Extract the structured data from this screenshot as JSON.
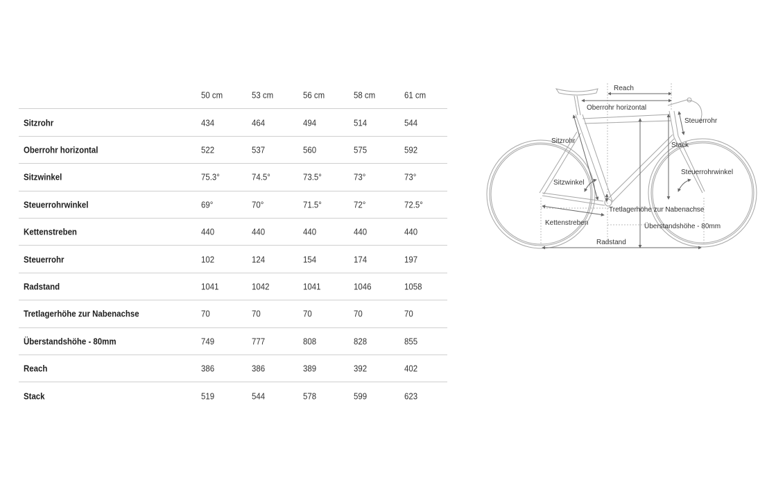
{
  "table": {
    "columns": [
      "50 cm",
      "53 cm",
      "56 cm",
      "58 cm",
      "61 cm"
    ],
    "rows": [
      {
        "label": "Sitzrohr",
        "values": [
          "434",
          "464",
          "494",
          "514",
          "544"
        ]
      },
      {
        "label": "Oberrohr horizontal",
        "values": [
          "522",
          "537",
          "560",
          "575",
          "592"
        ]
      },
      {
        "label": "Sitzwinkel",
        "values": [
          "75.3°",
          "74.5°",
          "73.5°",
          "73°",
          "73°"
        ]
      },
      {
        "label": "Steuerrohrwinkel",
        "values": [
          "69°",
          "70°",
          "71.5°",
          "72°",
          "72.5°"
        ]
      },
      {
        "label": "Kettenstreben",
        "values": [
          "440",
          "440",
          "440",
          "440",
          "440"
        ]
      },
      {
        "label": "Steuerrohr",
        "values": [
          "102",
          "124",
          "154",
          "174",
          "197"
        ]
      },
      {
        "label": "Radstand",
        "values": [
          "1041",
          "1042",
          "1041",
          "1046",
          "1058"
        ]
      },
      {
        "label": "Tretlagerhöhe zur Nabenachse",
        "values": [
          "70",
          "70",
          "70",
          "70",
          "70"
        ]
      },
      {
        "label": "Überstandshöhe - 80mm",
        "values": [
          "749",
          "777",
          "808",
          "828",
          "855"
        ]
      },
      {
        "label": "Reach",
        "values": [
          "386",
          "386",
          "389",
          "392",
          "402"
        ]
      },
      {
        "label": "Stack",
        "values": [
          "519",
          "544",
          "578",
          "599",
          "623"
        ]
      }
    ]
  },
  "diagram": {
    "labels": {
      "reach": "Reach",
      "oberrohr": "Oberrohr horizontal",
      "steuerrohr": "Steuerrohr",
      "sitzrohr": "Sitzrohr",
      "stack": "Stack",
      "steuerrohrwinkel": "Steuerrohrwinkel",
      "sitzwinkel": "Sitzwinkel",
      "tretlager": "Tretlagerhöhe zur Nabenachse",
      "kettenstreben": "Kettenstreben",
      "ueberstand": "Überstandshöhe - 80mm",
      "radstand": "Radstand"
    },
    "colors": {
      "frame": "#9a9a9a",
      "dimension": "#777777"
    }
  }
}
